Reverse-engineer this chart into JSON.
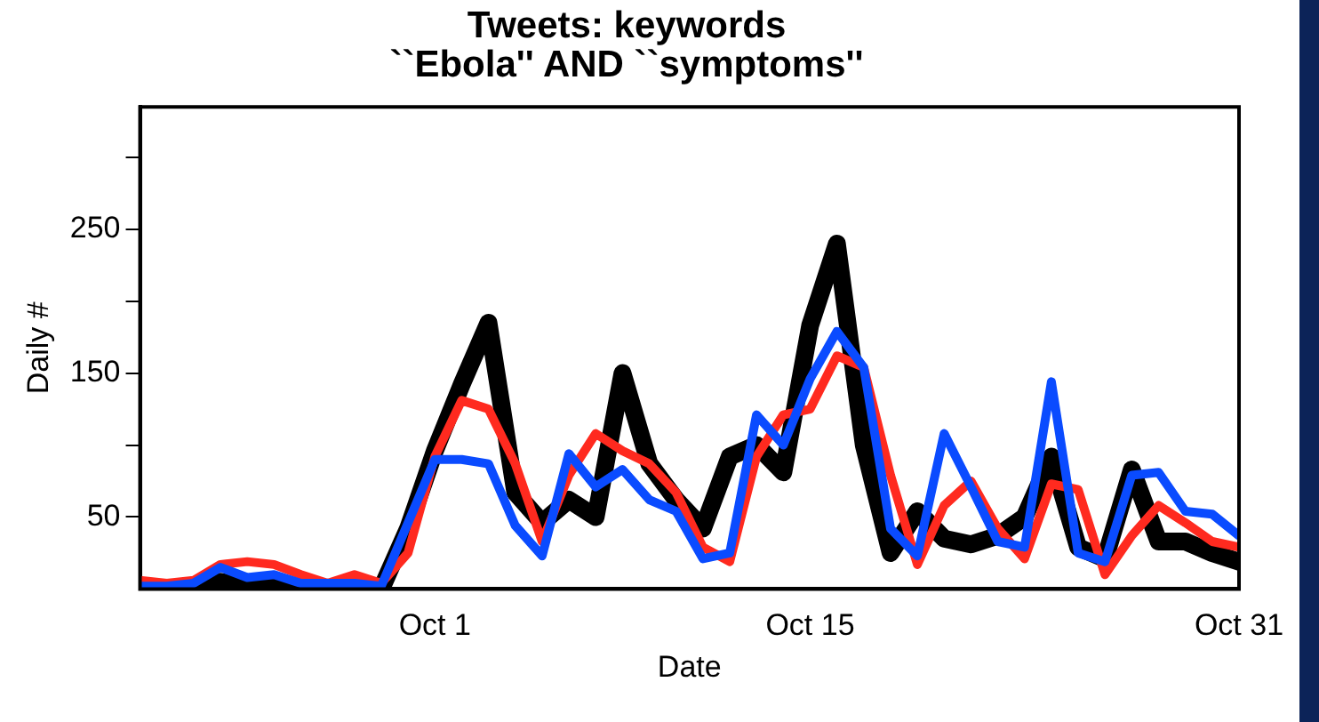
{
  "chart_data": {
    "type": "line",
    "title": "Tweets: keywords\n``Ebola'' AND ``symptoms''",
    "xlabel": "Date",
    "ylabel": "Daily #",
    "x": [
      "--09-20",
      "--09-21",
      "--09-22",
      "--09-23",
      "--09-24",
      "--09-25",
      "--09-26",
      "--09-27",
      "--09-28",
      "--09-29",
      "--09-30",
      "--10-01",
      "--10-02",
      "--10-03",
      "--10-04",
      "--10-05",
      "--10-06",
      "--10-07",
      "--10-08",
      "--10-09",
      "--10-10",
      "--10-11",
      "--10-12",
      "--10-13",
      "--10-14",
      "--10-15",
      "--10-16",
      "--10-17",
      "--10-18",
      "--10-19",
      "--10-20",
      "--10-21",
      "--10-22",
      "--10-23",
      "--10-24",
      "--10-25",
      "--10-26",
      "--10-27",
      "--10-28",
      "--10-29",
      "--10-30",
      "--10-31"
    ],
    "series": [
      {
        "color": "#000000",
        "values": [
          0,
          0,
          0,
          5,
          2,
          4,
          0,
          0,
          0,
          0,
          42,
          96,
          142,
          185,
          67,
          46,
          62,
          50,
          150,
          87,
          62,
          42,
          92,
          100,
          81,
          183,
          240,
          100,
          25,
          54,
          35,
          31,
          37,
          50,
          92,
          29,
          21,
          83,
          33,
          33,
          25,
          19
        ]
      },
      {
        "color": "#ff2a1f",
        "values": [
          6,
          4,
          6,
          17,
          19,
          17,
          10,
          4,
          10,
          4,
          25,
          92,
          131,
          125,
          87,
          33,
          79,
          108,
          96,
          87,
          67,
          29,
          19,
          92,
          121,
          125,
          162,
          154,
          79,
          17,
          58,
          75,
          42,
          21,
          73,
          69,
          10,
          37,
          58,
          46,
          33,
          29
        ]
      },
      {
        "color": "#0a4bff",
        "values": [
          2,
          2,
          4,
          15,
          8,
          10,
          4,
          4,
          4,
          2,
          46,
          90,
          90,
          87,
          44,
          23,
          94,
          71,
          83,
          62,
          54,
          21,
          25,
          121,
          100,
          146,
          179,
          154,
          42,
          23,
          108,
          71,
          33,
          29,
          144,
          25,
          19,
          79,
          81,
          54,
          52,
          37
        ]
      }
    ],
    "xlim": [
      "--09-20",
      "--10-31"
    ],
    "xticks": [
      {
        "value": "--10-01",
        "label": "Oct 1"
      },
      {
        "value": "--10-15",
        "label": "Oct 15"
      },
      {
        "value": "--10-31",
        "label": "Oct 31"
      }
    ],
    "ylim": [
      0,
      335
    ],
    "yticks": [
      50,
      {
        "value": 100,
        "label": null
      },
      150,
      {
        "value": 200,
        "label": null
      },
      250,
      {
        "value": 300,
        "label": null
      }
    ],
    "grid": false,
    "legend": false,
    "marker": "none",
    "line_style": "solid"
  }
}
